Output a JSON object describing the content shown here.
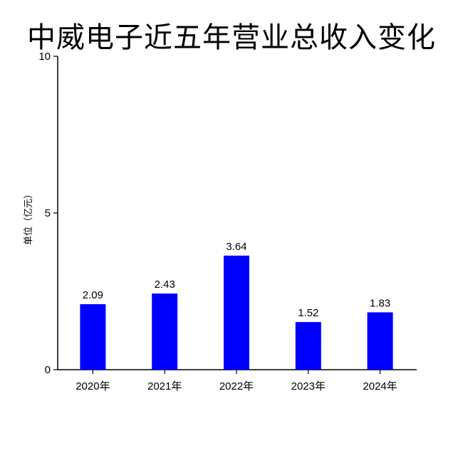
{
  "chart_data": {
    "type": "bar",
    "title": "中威电子近五年营业总收入变化",
    "xlabel": "",
    "ylabel": "单位（亿元）",
    "categories": [
      "2020年",
      "2021年",
      "2022年",
      "2023年",
      "2024年"
    ],
    "values": [
      2.09,
      2.43,
      3.64,
      1.52,
      1.83
    ],
    "value_labels": [
      "2.09",
      "2.43",
      "3.64",
      "1.52",
      "1.83"
    ],
    "ylim": [
      0,
      10
    ],
    "yticks": [
      0,
      5,
      10
    ],
    "ytick_labels": [
      "0",
      "5",
      "10"
    ],
    "bar_color": "#0000ff",
    "grid": false,
    "legend": "none"
  }
}
